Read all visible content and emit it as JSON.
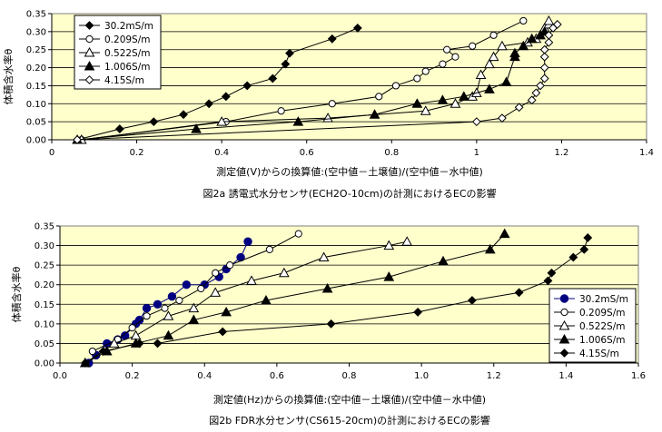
{
  "chart_data": [
    {
      "type": "scatter",
      "title": "",
      "caption": "図2a 誘電式水分センサ(ECH2O-10cm)の計測におけるECの影響",
      "xlabel": "測定値(V)からの換算値:(空中値－土壌値)/(空中値－水中値)",
      "ylabel": "体積含水率θ",
      "xlim": [
        0,
        1.4
      ],
      "ylim": [
        0,
        0.35
      ],
      "xticks": [
        "0",
        "0.2",
        "0.4",
        "0.6",
        "0.8",
        "1",
        "1.2",
        "1.4"
      ],
      "yticks": [
        "0.00",
        "0.05",
        "0.10",
        "0.15",
        "0.20",
        "0.25",
        "0.30",
        "0.35"
      ],
      "legend_position": "top-left",
      "grid": "horizontal",
      "plot_background": "#ffffcc",
      "series": [
        {
          "name": "30.2mS/m",
          "marker": "diamond-filled",
          "color": "#000000",
          "x": [
            0.06,
            0.16,
            0.24,
            0.31,
            0.37,
            0.41,
            0.46,
            0.52,
            0.55,
            0.56,
            0.66,
            0.72
          ],
          "y": [
            0.0,
            0.03,
            0.05,
            0.07,
            0.1,
            0.12,
            0.15,
            0.17,
            0.21,
            0.24,
            0.28,
            0.31
          ]
        },
        {
          "name": "0.209S/m",
          "marker": "circle-open",
          "color": "#000000",
          "x": [
            0.07,
            0.41,
            0.54,
            0.66,
            0.77,
            0.81,
            0.86,
            0.88,
            0.92,
            0.95,
            0.93,
            0.99,
            1.04,
            1.11
          ],
          "y": [
            0.0,
            0.05,
            0.08,
            0.1,
            0.12,
            0.15,
            0.17,
            0.19,
            0.21,
            0.23,
            0.25,
            0.26,
            0.29,
            0.33
          ]
        },
        {
          "name": "0.522S/m",
          "marker": "triangle-open",
          "color": "#000000",
          "x": [
            0.07,
            0.4,
            0.65,
            0.88,
            0.95,
            0.99,
            1.0,
            1.01,
            1.03,
            1.04,
            1.06,
            1.12,
            1.14,
            1.16,
            1.17,
            1.17
          ],
          "y": [
            0.0,
            0.05,
            0.06,
            0.08,
            0.1,
            0.12,
            0.13,
            0.18,
            0.21,
            0.23,
            0.26,
            0.27,
            0.28,
            0.31,
            0.32,
            0.33
          ]
        },
        {
          "name": "1.006S/m",
          "marker": "triangle-filled",
          "color": "#000000",
          "x": [
            0.06,
            0.34,
            0.58,
            0.76,
            0.86,
            0.92,
            0.97,
            1.03,
            1.07,
            1.09,
            1.09,
            1.11,
            1.13,
            1.15,
            1.16
          ],
          "y": [
            0.0,
            0.03,
            0.05,
            0.07,
            0.1,
            0.11,
            0.12,
            0.14,
            0.16,
            0.23,
            0.24,
            0.26,
            0.28,
            0.29,
            0.3
          ]
        },
        {
          "name": "4.15S/m",
          "marker": "diamond-open",
          "color": "#000000",
          "x": [
            0.06,
            1.0,
            1.06,
            1.1,
            1.13,
            1.14,
            1.15,
            1.16,
            1.16,
            1.16,
            1.16,
            1.17,
            1.17,
            1.18,
            1.19
          ],
          "y": [
            0.0,
            0.05,
            0.06,
            0.09,
            0.11,
            0.13,
            0.15,
            0.17,
            0.2,
            0.23,
            0.25,
            0.27,
            0.29,
            0.31,
            0.32
          ]
        }
      ]
    },
    {
      "type": "scatter",
      "title": "",
      "caption": "図2b FDR水分センサ(CS615-20cm)の計測におけるECの影響",
      "xlabel": "測定値(Hz)からの換算値:(空中値－土壌値)/(空中値－水中値)",
      "ylabel": "体積含水率θ",
      "xlim": [
        0,
        1.6
      ],
      "ylim": [
        0,
        0.35
      ],
      "xticks": [
        "0.0",
        "0.2",
        "0.4",
        "0.6",
        "0.8",
        "1.0",
        "1.2",
        "1.4",
        "1.6"
      ],
      "yticks": [
        "0.00",
        "0.05",
        "0.10",
        "0.15",
        "0.20",
        "0.25",
        "0.30",
        "0.35"
      ],
      "legend_position": "bottom-right",
      "grid": "horizontal",
      "plot_background": "#ffffcc",
      "series": [
        {
          "name": "30.2mS/m",
          "marker": "circle-filled",
          "color": "#000080",
          "x": [
            0.08,
            0.1,
            0.13,
            0.16,
            0.18,
            0.21,
            0.22,
            0.24,
            0.27,
            0.31,
            0.35,
            0.4,
            0.44,
            0.46,
            0.5,
            0.52
          ],
          "y": [
            0.0,
            0.02,
            0.05,
            0.06,
            0.07,
            0.1,
            0.11,
            0.14,
            0.15,
            0.17,
            0.2,
            0.2,
            0.22,
            0.24,
            0.27,
            0.31
          ]
        },
        {
          "name": "0.209S/m",
          "marker": "circle-open",
          "color": "#000000",
          "x": [
            0.09,
            0.16,
            0.2,
            0.24,
            0.29,
            0.33,
            0.39,
            0.43,
            0.47,
            0.58,
            0.66
          ],
          "y": [
            0.03,
            0.06,
            0.09,
            0.12,
            0.14,
            0.16,
            0.19,
            0.23,
            0.25,
            0.29,
            0.33
          ]
        },
        {
          "name": "0.522S/m",
          "marker": "triangle-open",
          "color": "#000000",
          "x": [
            0.07,
            0.15,
            0.21,
            0.3,
            0.37,
            0.43,
            0.53,
            0.62,
            0.73,
            0.91,
            0.96
          ],
          "y": [
            0.0,
            0.05,
            0.07,
            0.12,
            0.14,
            0.18,
            0.21,
            0.23,
            0.27,
            0.3,
            0.31
          ]
        },
        {
          "name": "1.006S/m",
          "marker": "triangle-filled",
          "color": "#000000",
          "x": [
            0.07,
            0.13,
            0.21,
            0.3,
            0.37,
            0.46,
            0.57,
            0.74,
            0.91,
            1.06,
            1.19,
            1.23
          ],
          "y": [
            0.0,
            0.03,
            0.05,
            0.07,
            0.11,
            0.13,
            0.16,
            0.19,
            0.22,
            0.26,
            0.29,
            0.33
          ]
        },
        {
          "name": "4.15S/m",
          "marker": "diamond-filled",
          "color": "#000000",
          "x": [
            0.07,
            0.12,
            0.22,
            0.27,
            0.45,
            0.75,
            0.99,
            1.14,
            1.27,
            1.35,
            1.36,
            1.42,
            1.45,
            1.46
          ],
          "y": [
            0.0,
            0.03,
            0.05,
            0.05,
            0.08,
            0.1,
            0.13,
            0.16,
            0.18,
            0.21,
            0.23,
            0.27,
            0.29,
            0.32
          ]
        }
      ]
    }
  ]
}
